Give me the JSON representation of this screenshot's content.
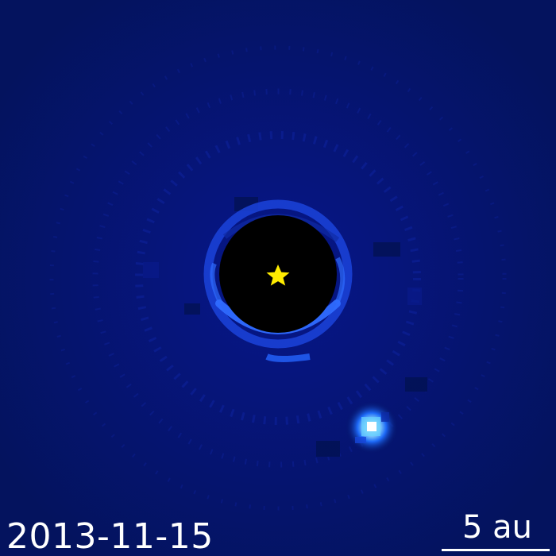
{
  "image": {
    "date": "2013-11-15",
    "scale_label": "5 au",
    "colors": {
      "background": "#04135e",
      "coronagraph_mask": "#000000",
      "ring": "#2a63ff",
      "star_marker": "#ffec00",
      "planet_core": "#ffffff",
      "planet_glow": "#3fa6ff",
      "text": "#ffffff"
    },
    "icons": {
      "star_marker": "star-icon"
    }
  }
}
